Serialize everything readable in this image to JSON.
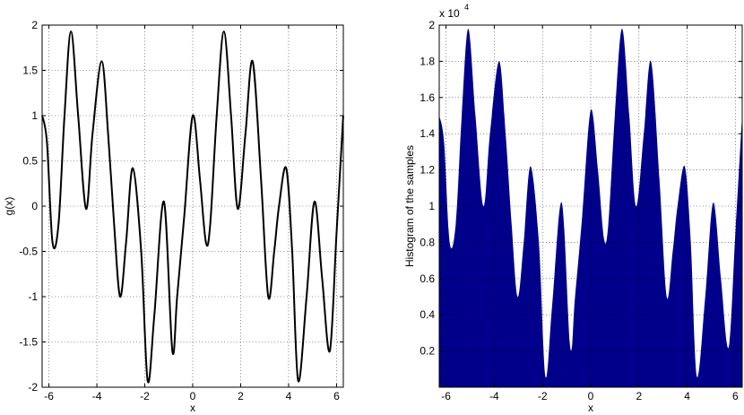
{
  "chart_data": [
    {
      "type": "line",
      "xlabel": "x",
      "ylabel": "g(x)",
      "xlim": [
        -6.2832,
        6.2832
      ],
      "ylim": [
        -2,
        2
      ],
      "grid": true,
      "xticks": [
        -6,
        -4,
        -2,
        0,
        2,
        4,
        6
      ],
      "xtick_labels": [
        "-6",
        "-4",
        "-2",
        "0",
        "2",
        "4",
        "6"
      ],
      "yticks": [
        -2,
        -1.5,
        -1,
        -0.5,
        0,
        0.5,
        1,
        1.5,
        2
      ],
      "ytick_labels": [
        "-2",
        "-1.5",
        "-1",
        "-0.5",
        "0",
        "0.5",
        "1",
        "1.5",
        "2"
      ],
      "series": [
        {
          "color": "#000000",
          "x": [
            -6.28,
            -6.08,
            -5.85,
            -5.6,
            -5.35,
            -5.08,
            -4.78,
            -4.45,
            -4.18,
            -3.8,
            -3.53,
            -3.28,
            -3.03,
            -2.78,
            -2.5,
            -2.15,
            -1.88,
            -1.6,
            -1.2,
            -0.85,
            -0.65,
            -0.35,
            0.0,
            0.3,
            0.55,
            0.73,
            1.0,
            1.3,
            1.6,
            1.88,
            2.2,
            2.5,
            2.85,
            3.15,
            3.4,
            3.6,
            3.9,
            4.15,
            4.4,
            4.75,
            5.08,
            5.4,
            5.72,
            6.0,
            6.28
          ],
          "y": [
            1.0,
            0.7,
            -0.4,
            -0.2,
            1.0,
            1.93,
            1.0,
            -0.03,
            0.8,
            1.6,
            0.8,
            -0.2,
            -1.0,
            -0.4,
            0.42,
            -0.5,
            -1.93,
            -1.2,
            0.05,
            -1.6,
            -1.0,
            -0.1,
            1.0,
            0.3,
            -0.4,
            -0.2,
            1.0,
            1.93,
            1.0,
            -0.03,
            0.8,
            1.6,
            0.3,
            -1.0,
            -0.5,
            0.0,
            0.42,
            -0.5,
            -1.93,
            -1.0,
            0.05,
            -0.8,
            -1.6,
            -0.3,
            1.0
          ]
        }
      ]
    },
    {
      "type": "area",
      "xlabel": "x",
      "ylabel": "Histogram of the samples",
      "y_multiplier": "x 10",
      "y_multiplier_exponent": "4",
      "xlim": [
        -6.2832,
        6.2832
      ],
      "ylim": [
        0,
        20000
      ],
      "grid": true,
      "xticks": [
        -6,
        -4,
        -2,
        0,
        2,
        4,
        6
      ],
      "xtick_labels": [
        "-6",
        "-4",
        "-2",
        "0",
        "2",
        "4",
        "6"
      ],
      "yticks": [
        2000,
        4000,
        6000,
        8000,
        10000,
        12000,
        14000,
        16000,
        18000,
        20000
      ],
      "ytick_labels": [
        "0.2",
        "0.4",
        "0.6",
        "0.8",
        "1",
        "1.2",
        "1.4",
        "1.6",
        "1.8",
        "2"
      ],
      "series": [
        {
          "color": "#00008b",
          "x": [
            -6.28,
            -6.08,
            -5.85,
            -5.6,
            -5.35,
            -5.08,
            -4.78,
            -4.45,
            -4.18,
            -3.8,
            -3.53,
            -3.28,
            -3.03,
            -2.78,
            -2.5,
            -2.15,
            -1.88,
            -1.6,
            -1.2,
            -0.85,
            -0.65,
            -0.35,
            0.0,
            0.3,
            0.55,
            0.73,
            1.0,
            1.3,
            1.6,
            1.88,
            2.2,
            2.5,
            2.85,
            3.15,
            3.4,
            3.6,
            3.9,
            4.15,
            4.4,
            4.75,
            5.08,
            5.4,
            5.72,
            6.0,
            6.28
          ],
          "y": [
            15000,
            13500,
            8000,
            9000,
            15000,
            19800,
            15000,
            10000,
            14000,
            18000,
            14000,
            9000,
            5000,
            8000,
            12200,
            8000,
            600,
            4500,
            10200,
            2200,
            5000,
            9500,
            15300,
            12000,
            8200,
            9000,
            15000,
            19800,
            15000,
            10000,
            14000,
            18000,
            11500,
            5000,
            7500,
            10000,
            12200,
            8000,
            600,
            5000,
            10200,
            6000,
            2200,
            8500,
            15000
          ]
        }
      ]
    }
  ]
}
